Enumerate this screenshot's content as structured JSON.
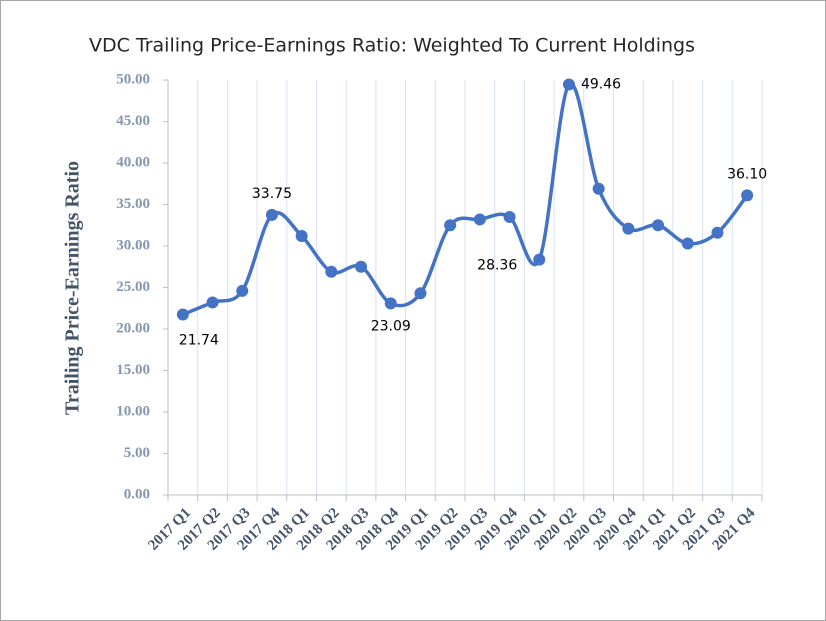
{
  "chart_data": {
    "type": "line",
    "title": "VDC Trailing Price-Earnings Ratio: Weighted To Current Holdings",
    "y_label": "Trailing Price-Earnings Ratio",
    "categories": [
      "2017 Q1",
      "2017 Q2",
      "2017 Q3",
      "2017 Q4",
      "2018 Q1",
      "2018 Q2",
      "2018 Q3",
      "2018 Q4",
      "2019 Q1",
      "2019 Q2",
      "2019 Q3",
      "2019 Q4",
      "2020 Q1",
      "2020 Q2",
      "2020 Q3",
      "2020 Q4",
      "2021 Q1",
      "2021 Q2",
      "2021 Q3",
      "2021 Q4"
    ],
    "series": [
      {
        "name": "Trailing Price-Earnings Ratio",
        "color": "#4472c4",
        "values": [
          21.74,
          23.2,
          24.6,
          33.75,
          31.2,
          26.9,
          27.5,
          23.09,
          24.3,
          32.5,
          33.2,
          33.5,
          28.36,
          49.46,
          36.9,
          32.1,
          32.5,
          30.3,
          31.6,
          36.1
        ],
        "value_labels": [
          "21.74",
          null,
          null,
          "33.75",
          null,
          null,
          null,
          "23.09",
          null,
          null,
          null,
          null,
          "28.36",
          "49.46",
          null,
          null,
          null,
          null,
          null,
          "36.10"
        ]
      }
    ],
    "ylim": [
      0,
      50
    ],
    "yticks": [
      {
        "value": 0,
        "label": "0.00"
      },
      {
        "value": 5,
        "label": "5.00"
      },
      {
        "value": 10,
        "label": "10.00"
      },
      {
        "value": 15,
        "label": "15.00"
      },
      {
        "value": 20,
        "label": "20.00"
      },
      {
        "value": 25,
        "label": "25.00"
      },
      {
        "value": 30,
        "label": "30.00"
      },
      {
        "value": 35,
        "label": "35.00"
      },
      {
        "value": 40,
        "label": "40.00"
      },
      {
        "value": 45,
        "label": "45.00"
      },
      {
        "value": 50,
        "label": "50.00"
      }
    ],
    "grid": true
  }
}
